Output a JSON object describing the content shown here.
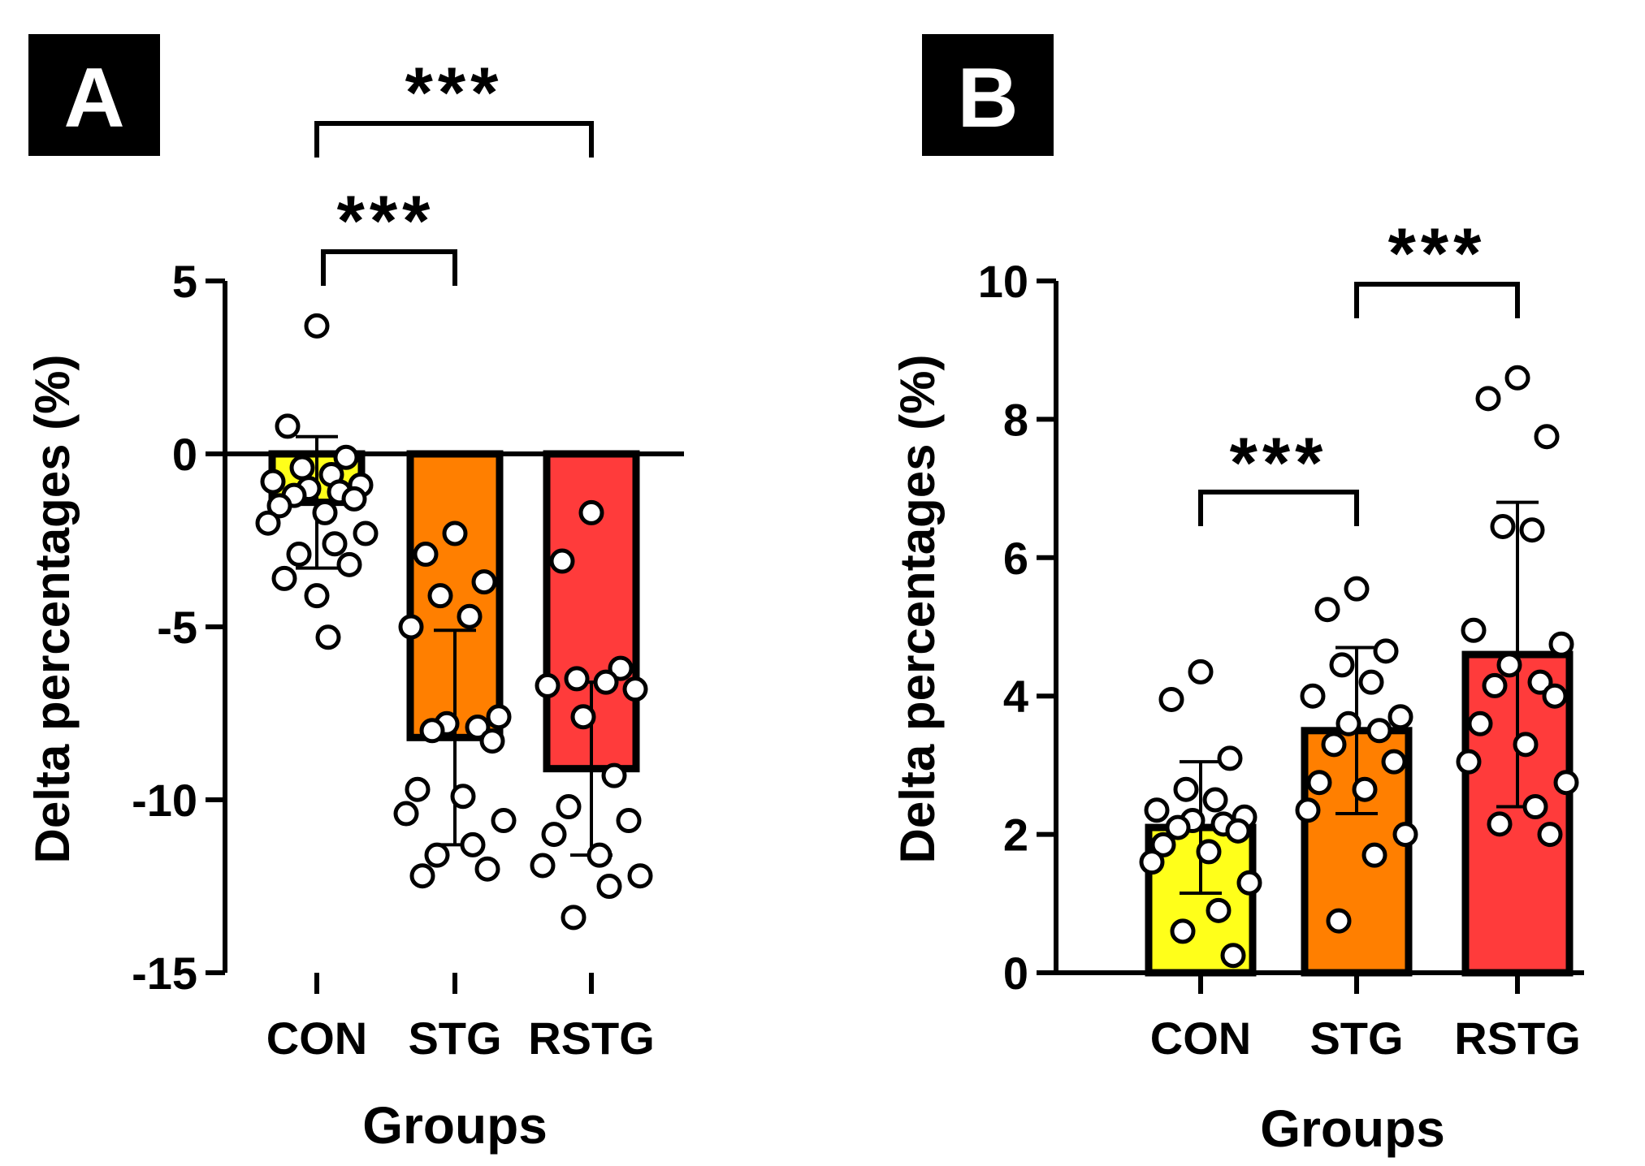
{
  "chart_data": [
    {
      "type": "bar",
      "panel": "A",
      "title": "",
      "xlabel": "Groups",
      "ylabel": "Delta percentages (%)",
      "ylim": [
        -15,
        5
      ],
      "yticks": [
        5,
        0,
        -5,
        -10,
        -15
      ],
      "ytick_labels": [
        "5",
        "0",
        "-5",
        "-10",
        "-15"
      ],
      "categories": [
        "CON",
        "STG",
        "RSTG"
      ],
      "colors": [
        "#ffff1a",
        "#ff7f00",
        "#ff3b3b"
      ],
      "means": [
        -1.4,
        -8.2,
        -9.1
      ],
      "errors": [
        1.9,
        3.1,
        2.5
      ],
      "points": [
        [
          3.7,
          0.8,
          -0.1,
          -0.4,
          -0.6,
          -0.8,
          -0.9,
          -1.0,
          -1.1,
          -1.2,
          -1.3,
          -1.5,
          -1.7,
          -2.0,
          -2.3,
          -2.6,
          -2.9,
          -3.2,
          -3.6,
          -4.1,
          -5.3
        ],
        [
          -2.3,
          -2.9,
          -3.7,
          -4.1,
          -4.7,
          -5.0,
          -7.6,
          -7.8,
          -7.9,
          -8.0,
          -8.3,
          -9.7,
          -9.9,
          -10.4,
          -10.6,
          -11.3,
          -11.6,
          -12.0,
          -12.2
        ],
        [
          -1.7,
          -3.1,
          -6.2,
          -6.5,
          -6.6,
          -6.7,
          -6.8,
          -7.6,
          -9.3,
          -10.2,
          -10.6,
          -11.0,
          -11.6,
          -11.9,
          -12.2,
          -12.5,
          -13.4
        ]
      ],
      "significance": [
        {
          "from": "CON",
          "to": "STG",
          "label": "***"
        },
        {
          "from": "CON",
          "to": "RSTG",
          "label": "***"
        }
      ]
    },
    {
      "type": "bar",
      "panel": "B",
      "title": "",
      "xlabel": "Groups",
      "ylabel": "Delta percentages (%)",
      "ylim": [
        0,
        10
      ],
      "yticks": [
        10,
        8,
        6,
        4,
        2,
        0
      ],
      "ytick_labels": [
        "10",
        "8",
        "6",
        "4",
        "2",
        "0"
      ],
      "categories": [
        "CON",
        "STG",
        "RSTG"
      ],
      "colors": [
        "#ffff1a",
        "#ff7f00",
        "#ff3b3b"
      ],
      "means": [
        2.1,
        3.5,
        4.6
      ],
      "errors": [
        0.95,
        1.2,
        2.2
      ],
      "points": [
        [
          4.35,
          3.95,
          3.1,
          2.65,
          2.5,
          2.35,
          2.25,
          2.2,
          2.15,
          2.1,
          2.05,
          1.85,
          1.75,
          1.6,
          1.3,
          0.9,
          0.6,
          0.25
        ],
        [
          5.55,
          5.25,
          4.65,
          4.45,
          4.2,
          4.0,
          3.7,
          3.6,
          3.5,
          3.3,
          3.05,
          2.75,
          2.65,
          2.35,
          2.0,
          1.7,
          0.75
        ],
        [
          8.6,
          8.3,
          7.75,
          6.45,
          6.4,
          4.95,
          4.75,
          4.45,
          4.2,
          4.15,
          4.0,
          3.6,
          3.3,
          3.05,
          2.75,
          2.4,
          2.15,
          2.0
        ]
      ],
      "significance": [
        {
          "from": "CON",
          "to": "STG",
          "label": "***"
        },
        {
          "from": "STG",
          "to": "RSTG",
          "label": "***"
        }
      ]
    }
  ]
}
